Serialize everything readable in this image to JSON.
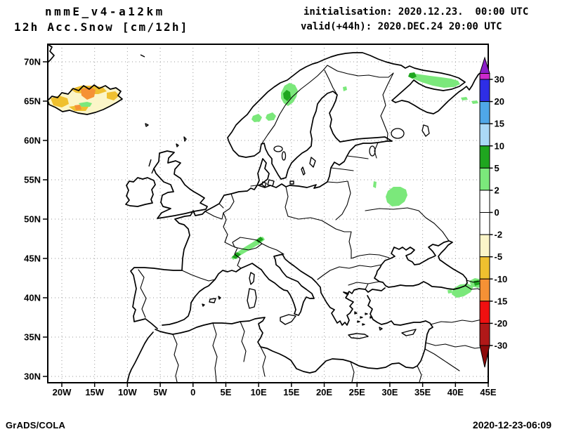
{
  "header": {
    "title_line1": "nmmE_v4-a12km",
    "title_line2": "12h Acc.Snow [cm/12h]",
    "init_line": "initialisation: 2020.12.23.  00:00 UTC",
    "valid_line": "valid(+44h): 2020.DEC.24 20:00 UTC"
  },
  "map": {
    "lat_tick_labels": [
      "70N",
      "65N",
      "60N",
      "55N",
      "50N",
      "45N",
      "40N",
      "35N",
      "30N"
    ],
    "lon_tick_labels": [
      "20W",
      "15W",
      "10W",
      "5W",
      "0",
      "5E",
      "10E",
      "15E",
      "20E",
      "25E",
      "30E",
      "35E",
      "40E",
      "45E"
    ],
    "palette": {
      "snow_light": "#7BE87B",
      "snow_dark": "#1FA61F",
      "ice_base": "#FBF5C8",
      "ice_gold": "#EFC02F",
      "ice_orange": "#F59135",
      "grid": "#9a9a9a"
    },
    "shaded_regions": [
      {
        "area": "Nordland, Norway",
        "value_cm": "2-10"
      },
      {
        "area": "Trondelag coast, Norway",
        "value_cm": "2-5"
      },
      {
        "area": "Kola Peninsula, Russia",
        "value_cm": "2-10"
      },
      {
        "area": "Central European Russia",
        "value_cm": "2-5"
      },
      {
        "area": "Alps (Switzerland/France)",
        "value_cm": "2-10"
      },
      {
        "area": "Caucasus / Eastern Turkey",
        "value_cm": "2-10"
      },
      {
        "area": "Iceland",
        "value_cm": "-15 to 2"
      }
    ]
  },
  "colorbar": {
    "tick_labels": [
      "30",
      "20",
      "15",
      "10",
      "5",
      "2",
      "0",
      "-2",
      "-5",
      "-10",
      "-15",
      "-20",
      "-30"
    ],
    "arrow_top_color": "#8B1FC8",
    "above_max_band_color": "#CC29CC",
    "segment_colors": [
      "#2E2EE6",
      "#4FA7E8",
      "#ABD9F7",
      "#1FA61F",
      "#7BE87B",
      "#FFFFFF",
      "#FFFFFF",
      "#FBF5C8",
      "#EFC02F",
      "#F59135",
      "#F01010",
      "#B01818"
    ],
    "arrow_bottom_color": "#8C0A0A"
  },
  "footer": {
    "left": "GrADS/COLA",
    "right": "2020-12-23-06:09"
  }
}
